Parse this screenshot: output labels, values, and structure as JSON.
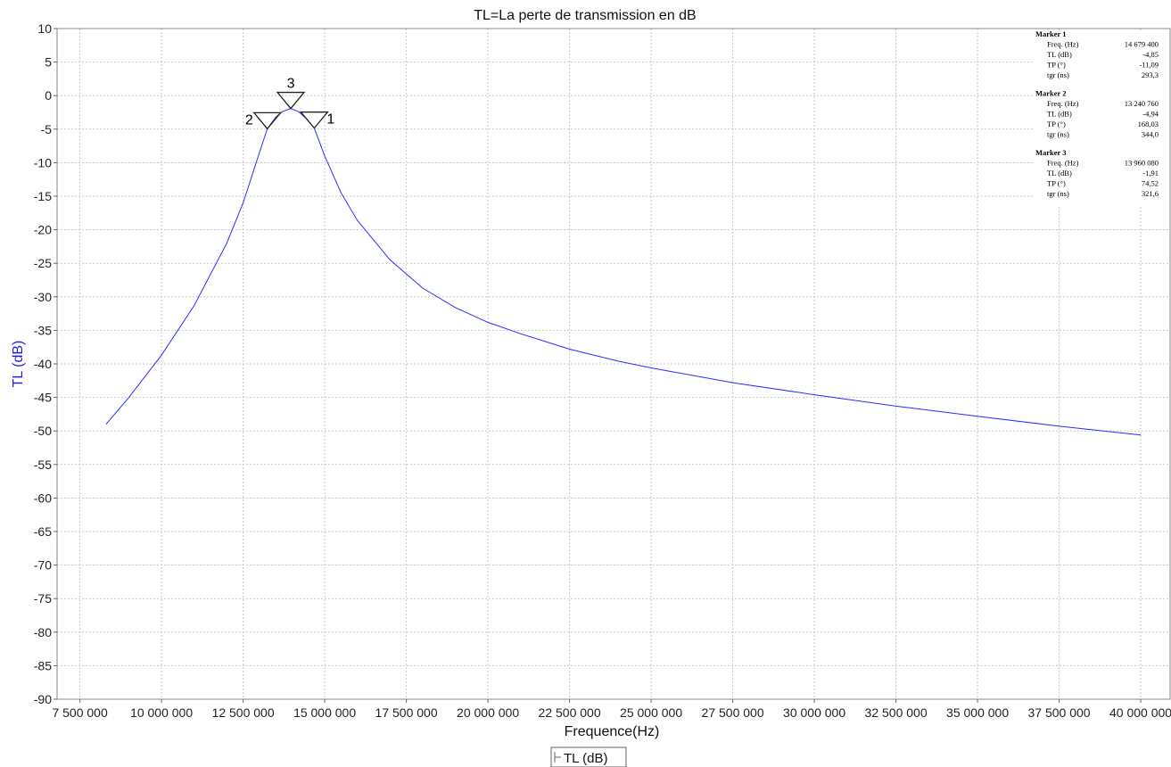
{
  "chart_data": {
    "type": "line",
    "title": "TL=La perte de transmission en dB",
    "xlabel": "Frequence(Hz)",
    "ylabel": "TL (dB)",
    "xlim": [
      6800000,
      40900000
    ],
    "ylim": [
      -90,
      10
    ],
    "x_ticks": [
      7500000,
      10000000,
      12500000,
      15000000,
      17500000,
      20000000,
      22500000,
      25000000,
      27500000,
      30000000,
      32500000,
      35000000,
      37500000,
      40000000
    ],
    "x_tick_labels": [
      "7 500 000",
      "10 000 000",
      "12 500 000",
      "15 000 000",
      "17 500 000",
      "20 000 000",
      "22 500 000",
      "25 000 000",
      "27 500 000",
      "30 000 000",
      "32 500 000",
      "35 000 000",
      "37 500 000",
      "40 000 000"
    ],
    "y_ticks": [
      10,
      5,
      0,
      -5,
      -10,
      -15,
      -20,
      -25,
      -30,
      -35,
      -40,
      -45,
      -50,
      -55,
      -60,
      -65,
      -70,
      -75,
      -80,
      -85,
      -90
    ],
    "y_tick_labels": [
      "10",
      "5",
      "0",
      "-5",
      "-10",
      "-15",
      "-20",
      "-25",
      "-30",
      "-35",
      "-40",
      "-45",
      "-50",
      "-55",
      "-60",
      "-65",
      "-70",
      "-75",
      "-80",
      "-85",
      "-90"
    ],
    "grid": true,
    "legend": {
      "position": "bottom-center",
      "entries": [
        "TL (dB)"
      ]
    },
    "series": [
      {
        "name": "TL (dB)",
        "color": "#2b2bff",
        "x": [
          8300000,
          9000000,
          10000000,
          11000000,
          12000000,
          12500000,
          13000000,
          13240760,
          13500000,
          13700000,
          13960080,
          14200000,
          14450000,
          14679400,
          15000000,
          15500000,
          16000000,
          17000000,
          18000000,
          19000000,
          20000000,
          21000000,
          22500000,
          24000000,
          25000000,
          27500000,
          30000000,
          32500000,
          35000000,
          37500000,
          40000000
        ],
        "y": [
          -49,
          -45,
          -38.7,
          -31.3,
          -22,
          -16,
          -8.5,
          -4.94,
          -3.2,
          -2.4,
          -1.91,
          -2.4,
          -3.5,
          -4.85,
          -9,
          -14.5,
          -18.6,
          -24.5,
          -28.7,
          -31.6,
          -33.8,
          -35.5,
          -37.8,
          -39.6,
          -40.6,
          -42.8,
          -44.6,
          -46.3,
          -47.8,
          -49.3,
          -50.6
        ]
      }
    ],
    "markers": [
      {
        "id": "1",
        "freq": 14679400,
        "tl": -4.85,
        "header": "Marker 1",
        "rows": [
          [
            "Freq. (Hz)",
            "14 679 400"
          ],
          [
            "TL (dB)",
            "-4,85"
          ],
          [
            "TP (°)",
            "-11,09"
          ],
          [
            "tgr (ns)",
            "293,3"
          ]
        ]
      },
      {
        "id": "2",
        "freq": 13240760,
        "tl": -4.94,
        "header": "Marker 2",
        "rows": [
          [
            "Freq. (Hz)",
            "13 240 760"
          ],
          [
            "TL (dB)",
            "-4,94"
          ],
          [
            "TP (°)",
            "168,03"
          ],
          [
            "tgr (ns)",
            "344,0"
          ]
        ]
      },
      {
        "id": "3",
        "freq": 13960080,
        "tl": -1.91,
        "header": "Marker 3",
        "rows": [
          [
            "Freq. (Hz)",
            "13 960 080"
          ],
          [
            "TL (dB)",
            "-1,91"
          ],
          [
            "TP (°)",
            "74,52"
          ],
          [
            "tgr (ns)",
            "321,6"
          ]
        ]
      }
    ]
  }
}
